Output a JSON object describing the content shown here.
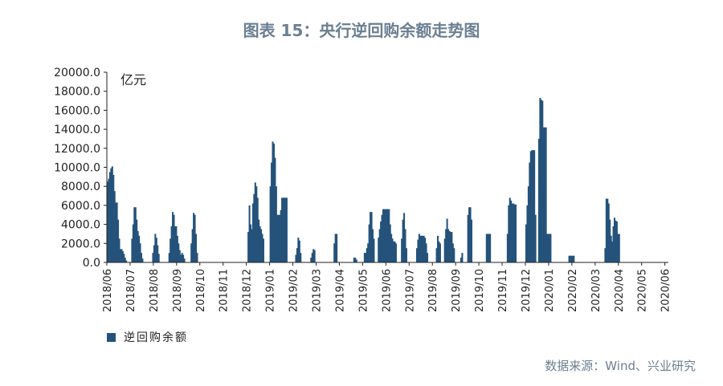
{
  "title": "图表 15：央行逆回购余额走势图",
  "source": "数据来源：Wind、兴业研究",
  "chart_data": {
    "type": "bar",
    "title": "图表 15：央行逆回购余额走势图",
    "ylabel": "亿元",
    "xlabel": "",
    "ylim": [
      0,
      20000
    ],
    "yticks": [
      "0.0",
      "2000.0",
      "4000.0",
      "6000.0",
      "8000.0",
      "10000.0",
      "12000.0",
      "14000.0",
      "16000.0",
      "18000.0",
      "20000.0"
    ],
    "categories": [
      "2018/06",
      "2018/07",
      "2018/08",
      "2018/09",
      "2018/10",
      "2018/11",
      "2018/12",
      "2019/01",
      "2019/02",
      "2019/03",
      "2019/04",
      "2019/05",
      "2019/06",
      "2019/07",
      "2019/08",
      "2019/09",
      "2019/10",
      "2019/11",
      "2019/12",
      "2020/01",
      "2020/02",
      "2020/03",
      "2020/04",
      "2020/05",
      "2020/06"
    ],
    "series": [
      {
        "name": "逆回购余额",
        "color": "#24527a",
        "points": [
          [
            0.0,
            8500
          ],
          [
            0.05,
            8800
          ],
          [
            0.1,
            9500
          ],
          [
            0.15,
            9900
          ],
          [
            0.2,
            10100
          ],
          [
            0.25,
            9200
          ],
          [
            0.3,
            7500
          ],
          [
            0.35,
            6300
          ],
          [
            0.4,
            6300
          ],
          [
            0.45,
            4500
          ],
          [
            0.5,
            2500
          ],
          [
            0.55,
            1400
          ],
          [
            0.6,
            1400
          ],
          [
            0.65,
            1200
          ],
          [
            0.7,
            900
          ],
          [
            0.75,
            500
          ],
          [
            0.8,
            200
          ],
          [
            1.05,
            2500
          ],
          [
            1.1,
            4000
          ],
          [
            1.15,
            5800
          ],
          [
            1.2,
            5800
          ],
          [
            1.25,
            4500
          ],
          [
            1.3,
            3300
          ],
          [
            1.35,
            2800
          ],
          [
            1.4,
            2000
          ],
          [
            1.45,
            1000
          ],
          [
            1.5,
            400
          ],
          [
            1.95,
            1000
          ],
          [
            2.0,
            1800
          ],
          [
            2.05,
            3000
          ],
          [
            2.1,
            2600
          ],
          [
            2.15,
            1800
          ],
          [
            2.2,
            900
          ],
          [
            2.65,
            1000
          ],
          [
            2.7,
            2500
          ],
          [
            2.75,
            3800
          ],
          [
            2.8,
            5300
          ],
          [
            2.85,
            5000
          ],
          [
            2.9,
            3800
          ],
          [
            2.95,
            3800
          ],
          [
            3.0,
            2800
          ],
          [
            3.05,
            2000
          ],
          [
            3.1,
            1300
          ],
          [
            3.15,
            800
          ],
          [
            3.2,
            1000
          ],
          [
            3.25,
            800
          ],
          [
            3.3,
            400
          ],
          [
            3.6,
            2000
          ],
          [
            3.65,
            3500
          ],
          [
            3.7,
            5200
          ],
          [
            3.75,
            5000
          ],
          [
            3.8,
            3000
          ],
          [
            3.85,
            1000
          ],
          [
            6.05,
            3200
          ],
          [
            6.1,
            6000
          ],
          [
            6.15,
            4000
          ],
          [
            6.2,
            3500
          ],
          [
            6.25,
            6200
          ],
          [
            6.3,
            7200
          ],
          [
            6.35,
            8400
          ],
          [
            6.4,
            8000
          ],
          [
            6.45,
            6800
          ],
          [
            6.5,
            4500
          ],
          [
            6.55,
            3800
          ],
          [
            6.6,
            3500
          ],
          [
            6.65,
            3000
          ],
          [
            6.7,
            2500
          ],
          [
            7.0,
            8000
          ],
          [
            7.05,
            10500
          ],
          [
            7.1,
            12700
          ],
          [
            7.15,
            12500
          ],
          [
            7.2,
            11000
          ],
          [
            7.25,
            8000
          ],
          [
            7.3,
            5000
          ],
          [
            7.35,
            5000
          ],
          [
            7.4,
            5000
          ],
          [
            7.45,
            5500
          ],
          [
            7.5,
            6800
          ],
          [
            7.55,
            6800
          ],
          [
            7.6,
            6800
          ],
          [
            7.65,
            6800
          ],
          [
            7.7,
            6800
          ],
          [
            8.1,
            800
          ],
          [
            8.15,
            1500
          ],
          [
            8.2,
            2600
          ],
          [
            8.25,
            2300
          ],
          [
            8.3,
            1000
          ],
          [
            8.75,
            500
          ],
          [
            8.8,
            1000
          ],
          [
            8.85,
            1400
          ],
          [
            8.9,
            1300
          ],
          [
            9.75,
            2000
          ],
          [
            9.8,
            3000
          ],
          [
            9.85,
            3000
          ],
          [
            10.6,
            500
          ],
          [
            10.65,
            500
          ],
          [
            10.7,
            300
          ],
          [
            11.05,
            1000
          ],
          [
            11.1,
            1000
          ],
          [
            11.15,
            1500
          ],
          [
            11.2,
            2000
          ],
          [
            11.25,
            4000
          ],
          [
            11.3,
            5300
          ],
          [
            11.35,
            5300
          ],
          [
            11.4,
            3500
          ],
          [
            11.45,
            2500
          ],
          [
            11.65,
            2600
          ],
          [
            11.7,
            3500
          ],
          [
            11.75,
            4300
          ],
          [
            11.8,
            5000
          ],
          [
            11.85,
            5600
          ],
          [
            11.9,
            5600
          ],
          [
            11.95,
            5600
          ],
          [
            12.0,
            5600
          ],
          [
            12.05,
            5600
          ],
          [
            12.1,
            5600
          ],
          [
            12.15,
            4000
          ],
          [
            12.2,
            3000
          ],
          [
            12.25,
            2500
          ],
          [
            12.3,
            2200
          ],
          [
            12.35,
            2200
          ],
          [
            12.4,
            2000
          ],
          [
            12.65,
            2500
          ],
          [
            12.7,
            4500
          ],
          [
            12.75,
            5200
          ],
          [
            12.8,
            3500
          ],
          [
            12.85,
            1500
          ],
          [
            13.3,
            1500
          ],
          [
            13.35,
            2400
          ],
          [
            13.4,
            3000
          ],
          [
            13.45,
            2800
          ],
          [
            13.5,
            2800
          ],
          [
            13.55,
            2800
          ],
          [
            13.6,
            2800
          ],
          [
            13.65,
            2600
          ],
          [
            13.7,
            2000
          ],
          [
            13.75,
            1000
          ],
          [
            14.15,
            1500
          ],
          [
            14.2,
            2800
          ],
          [
            14.25,
            2200
          ],
          [
            14.3,
            2000
          ],
          [
            14.5,
            2500
          ],
          [
            14.55,
            3500
          ],
          [
            14.6,
            4600
          ],
          [
            14.65,
            3500
          ],
          [
            14.7,
            3300
          ],
          [
            14.75,
            3200
          ],
          [
            14.8,
            3200
          ],
          [
            14.85,
            2000
          ],
          [
            14.9,
            1500
          ],
          [
            15.2,
            500
          ],
          [
            15.25,
            1000
          ],
          [
            15.5,
            5000
          ],
          [
            15.55,
            5800
          ],
          [
            15.6,
            5800
          ],
          [
            15.65,
            4500
          ],
          [
            16.3,
            3000
          ],
          [
            16.35,
            3000
          ],
          [
            16.4,
            3000
          ],
          [
            16.45,
            3000
          ],
          [
            17.2,
            3000
          ],
          [
            17.25,
            6000
          ],
          [
            17.3,
            6800
          ],
          [
            17.35,
            6500
          ],
          [
            17.4,
            6200
          ],
          [
            17.45,
            6200
          ],
          [
            17.5,
            6100
          ],
          [
            17.55,
            6100
          ],
          [
            18.0,
            4000
          ],
          [
            18.05,
            6000
          ],
          [
            18.1,
            8000
          ],
          [
            18.15,
            10500
          ],
          [
            18.2,
            11700
          ],
          [
            18.25,
            11800
          ],
          [
            18.3,
            11800
          ],
          [
            18.35,
            11800
          ],
          [
            18.4,
            5000
          ],
          [
            18.55,
            13000
          ],
          [
            18.6,
            17300
          ],
          [
            18.65,
            17100
          ],
          [
            18.7,
            17000
          ],
          [
            18.75,
            14200
          ],
          [
            18.8,
            14200
          ],
          [
            18.85,
            14200
          ],
          [
            18.9,
            3000
          ],
          [
            18.95,
            3000
          ],
          [
            19.0,
            3000
          ],
          [
            19.05,
            3000
          ],
          [
            19.85,
            700
          ],
          [
            19.9,
            700
          ],
          [
            19.95,
            700
          ],
          [
            20.0,
            700
          ],
          [
            20.05,
            700
          ],
          [
            21.4,
            1500
          ],
          [
            21.45,
            6700
          ],
          [
            21.5,
            6700
          ],
          [
            21.55,
            6200
          ],
          [
            21.6,
            4500
          ],
          [
            21.65,
            2800
          ],
          [
            21.7,
            2200
          ],
          [
            21.75,
            3800
          ],
          [
            21.8,
            4700
          ],
          [
            21.85,
            4400
          ],
          [
            21.9,
            4300
          ],
          [
            21.95,
            3000
          ],
          [
            22.0,
            3000
          ]
        ]
      }
    ],
    "legend": {
      "position": "bottom-left",
      "entries": [
        "逆回购余额"
      ]
    },
    "grid": false
  }
}
